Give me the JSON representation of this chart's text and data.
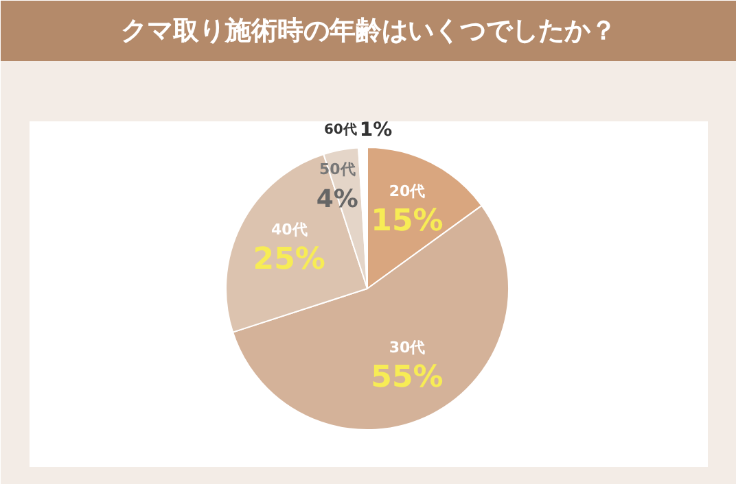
{
  "chart_data": {
    "type": "pie",
    "title": "クマ取り施術時の年齢はいくつでしたか？",
    "categories": [
      "20代",
      "30代",
      "40代",
      "50代",
      "60代"
    ],
    "values": [
      15,
      55,
      25,
      4,
      1
    ],
    "colors": [
      "#d9a67f",
      "#d4b299",
      "#dcc3af",
      "#e4d5c8",
      "#ffffff"
    ],
    "value_labels": [
      "15%",
      "55%",
      "25%",
      "4%",
      "1%"
    ]
  }
}
